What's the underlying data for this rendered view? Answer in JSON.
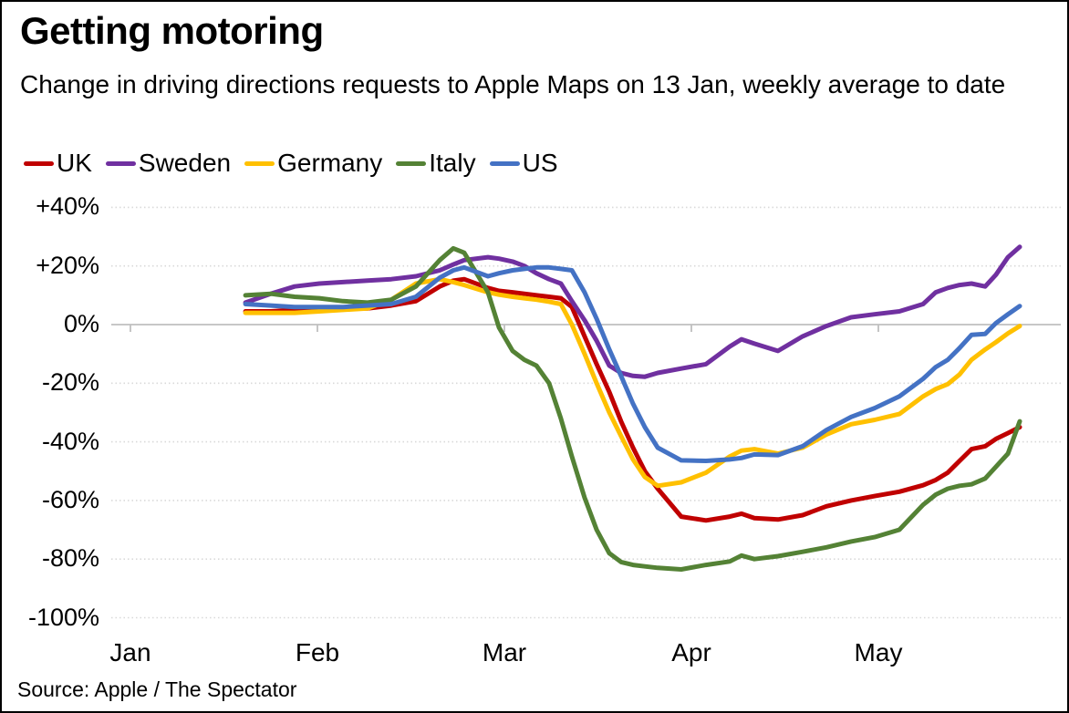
{
  "title": "Getting motoring",
  "subtitle": "Change in driving directions requests to Apple Maps on 13 Jan, weekly average to date",
  "source": "Source: Apple / The Spectator",
  "colors": {
    "uk": "#c00000",
    "sweden": "#7030a0",
    "germany": "#ffc000",
    "italy": "#548235",
    "us": "#4472c4",
    "gridline": "#d9d9d9",
    "zero_axis": "#bfbfbf",
    "text": "#000000"
  },
  "chart_data": {
    "type": "line",
    "title": "Getting motoring",
    "subtitle": "Change in driving directions requests to Apple Maps on 13 Jan, weekly average to date",
    "legend_position": "top",
    "grid": "horizontal dotted gridlines, solid zero axis with month tick marks",
    "x_axis": {
      "tick_labels": [
        "Jan",
        "Feb",
        "Mar",
        "Apr",
        "May"
      ],
      "note": "x values are month positions along the axis: 0 = Jan tick, 1 = Feb tick, 2 = Mar tick, 3 = Apr tick, 4 = May tick"
    },
    "y_axis": {
      "unit": "%",
      "tick_labels": [
        "+40%",
        "+20%",
        "0%",
        "-20%",
        "-40%",
        "-60%",
        "-80%",
        "-100%"
      ],
      "tick_values": [
        40,
        20,
        0,
        -20,
        -40,
        -60,
        -80,
        -100
      ],
      "ylim": [
        -107,
        46
      ]
    },
    "x": [
      0.615,
      0.751,
      0.878,
      1.01,
      1.137,
      1.268,
      1.395,
      1.527,
      1.654,
      1.727,
      1.785,
      1.912,
      1.971,
      2.044,
      2.107,
      2.171,
      2.239,
      2.302,
      2.361,
      2.429,
      2.493,
      2.561,
      2.624,
      2.688,
      2.751,
      2.82,
      2.946,
      3.078,
      3.205,
      3.268,
      3.337,
      3.463,
      3.595,
      3.722,
      3.854,
      3.98,
      4.112,
      4.239,
      4.307,
      4.371,
      4.434,
      4.498,
      4.571,
      4.629,
      4.693,
      4.756
    ],
    "series": [
      {
        "name": "UK",
        "color": "#c00000",
        "values": [
          4.5,
          4.5,
          5,
          5,
          5.5,
          5.5,
          6.5,
          8,
          13,
          15,
          15.5,
          12.5,
          11.5,
          11,
          10.5,
          10,
          9.5,
          9,
          6,
          -4,
          -13.5,
          -23,
          -33,
          -42,
          -50,
          -56,
          -65.5,
          -66.8,
          -65.5,
          -64.5,
          -66,
          -66.5,
          -65,
          -62,
          -60,
          -58.5,
          -57,
          -54.8,
          -53,
          -50.5,
          -46.5,
          -42.5,
          -41.5,
          -39,
          -37,
          -35
        ]
      },
      {
        "name": "Sweden",
        "color": "#7030a0",
        "values": [
          7.5,
          10.5,
          13,
          14,
          14.5,
          15,
          15.5,
          16.5,
          18.5,
          20.5,
          22,
          23,
          22.5,
          21.5,
          20,
          17.5,
          15.5,
          14,
          8,
          1.5,
          -5.5,
          -14,
          -16.5,
          -17.5,
          -17.8,
          -16.5,
          -15,
          -13.5,
          -7.5,
          -5,
          -6.5,
          -9,
          -4,
          -0.5,
          2.5,
          3.5,
          4.5,
          7,
          11,
          12.5,
          13.5,
          14,
          13,
          17,
          23,
          26.5
        ]
      },
      {
        "name": "Germany",
        "color": "#ffc000",
        "values": [
          4,
          4,
          4,
          4.5,
          5,
          5.5,
          8.5,
          14,
          15.5,
          14.5,
          13.5,
          11,
          10.2,
          9.5,
          9,
          8.5,
          7.8,
          7,
          0,
          -10,
          -20,
          -30,
          -38,
          -46,
          -52,
          -55,
          -53.8,
          -50.5,
          -45,
          -43,
          -42.5,
          -44,
          -42,
          -37.5,
          -34,
          -32.5,
          -30.5,
          -24.5,
          -22,
          -20.3,
          -17,
          -12,
          -8.5,
          -6,
          -3,
          -0.5
        ]
      },
      {
        "name": "Italy",
        "color": "#548235",
        "values": [
          10,
          10.5,
          9.5,
          9,
          8,
          7.5,
          8.5,
          13,
          22,
          26,
          24.5,
          11,
          -1,
          -9,
          -12,
          -14,
          -20,
          -32,
          -45,
          -59,
          -70,
          -78,
          -81,
          -82,
          -82.5,
          -83,
          -83.5,
          -82,
          -80.8,
          -78.8,
          -80,
          -79,
          -77.5,
          -76,
          -74,
          -72.5,
          -70,
          -61.5,
          -58,
          -56,
          -55,
          -54.5,
          -52.5,
          -48.5,
          -44,
          -33
        ]
      },
      {
        "name": "US",
        "color": "#4472c4",
        "values": [
          7,
          6.5,
          6,
          6,
          6,
          6.5,
          7,
          9.5,
          16,
          18.5,
          19.5,
          16.5,
          17.5,
          18.5,
          19,
          19.5,
          19.5,
          19,
          18.5,
          11,
          2,
          -8.5,
          -17.5,
          -27,
          -35,
          -42,
          -46.3,
          -46.5,
          -46,
          -45.5,
          -44.3,
          -44.5,
          -41.5,
          -36,
          -31.5,
          -28.5,
          -24.5,
          -18.5,
          -14.5,
          -12,
          -8,
          -3.5,
          -3.2,
          0.5,
          3.5,
          6.3
        ]
      }
    ]
  }
}
